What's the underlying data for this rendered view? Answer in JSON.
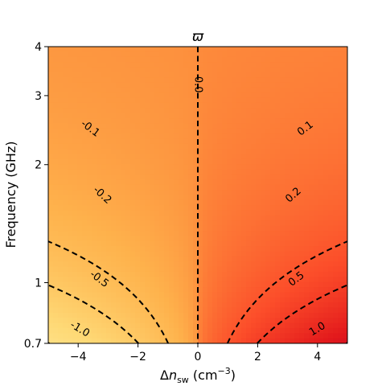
{
  "chart_data": {
    "type": "heatmap",
    "title": "ϖ",
    "xlabel_main": "Δ",
    "xlabel_var": "n",
    "xlabel_sub": "sw",
    "xlabel_unit_open": " (cm",
    "xlabel_unit_sup": "−3",
    "xlabel_unit_close": ")",
    "ylabel": "Frequency (GHz)",
    "x_range": [
      -5,
      5
    ],
    "y_range": [
      0.7,
      4
    ],
    "y_scale": "log",
    "x_ticks": [
      {
        "value": -4,
        "label": "−4"
      },
      {
        "value": -2,
        "label": "−2"
      },
      {
        "value": 0,
        "label": "0"
      },
      {
        "value": 2,
        "label": "2"
      },
      {
        "value": 4,
        "label": "4"
      }
    ],
    "y_ticks": [
      {
        "value": 0.7,
        "label": "0.7"
      },
      {
        "value": 1,
        "label": "1"
      },
      {
        "value": 2,
        "label": "2"
      },
      {
        "value": 3,
        "label": "3"
      },
      {
        "value": 4,
        "label": "4"
      }
    ],
    "colormap": "YlOrRd",
    "contour_style": "dashed black",
    "contour_levels": [
      -1.0,
      -0.5,
      -0.2,
      -0.1,
      0.0,
      0.1,
      0.2,
      0.5,
      1.0
    ],
    "contour_labels": [
      {
        "text": "-1.0",
        "x": -3.95,
        "y": 0.76,
        "angle": 31
      },
      {
        "text": "-0.5",
        "x": -3.3,
        "y": 1.02,
        "angle": 37
      },
      {
        "text": "-0.2",
        "x": -3.2,
        "y": 1.67,
        "angle": 42
      },
      {
        "text": "-0.1",
        "x": -3.6,
        "y": 2.47,
        "angle": 37
      },
      {
        "text": "0.0",
        "x": 0.0,
        "y": 3.2,
        "angle": 90
      },
      {
        "text": "0.1",
        "x": 3.6,
        "y": 2.47,
        "angle": -37
      },
      {
        "text": "0.2",
        "x": 3.2,
        "y": 1.67,
        "angle": -42
      },
      {
        "text": "0.5",
        "x": 3.3,
        "y": 1.02,
        "angle": -37
      },
      {
        "text": "1.0",
        "x": 4.0,
        "y": 0.76,
        "angle": -31
      }
    ],
    "grid": false,
    "colors": {
      "low": "#fff8c4",
      "mid": "#fd8c3c",
      "high": "#800026",
      "contour": "#000000"
    }
  }
}
